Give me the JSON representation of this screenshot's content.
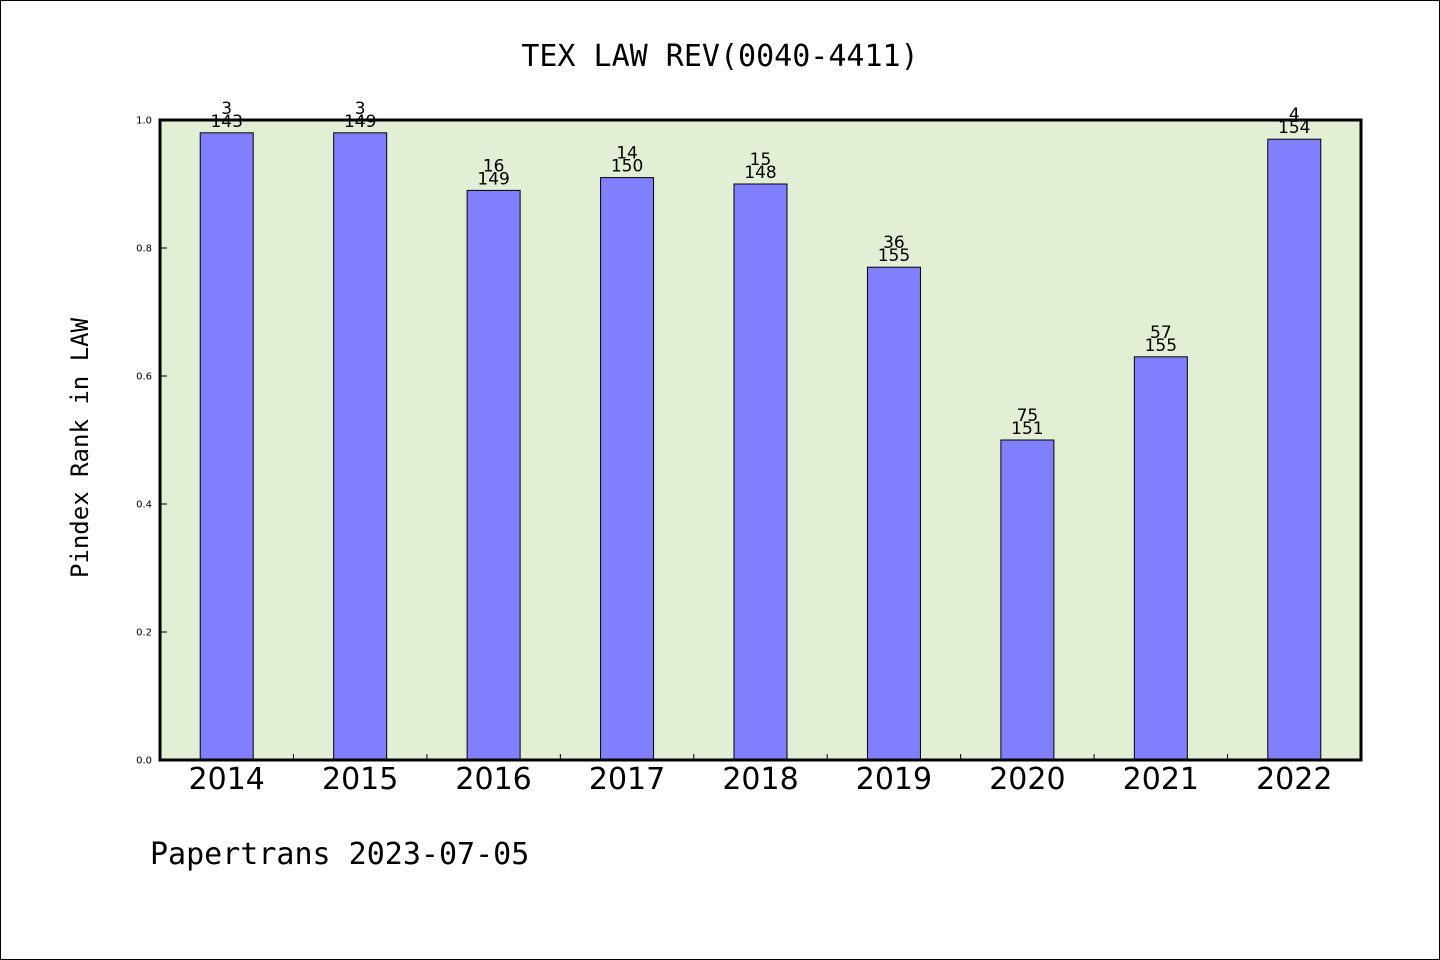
{
  "chart_data": {
    "type": "bar",
    "title": "TEX LAW REV(0040-4411)",
    "xlabel": "",
    "ylabel": "Pindex Rank in LAW",
    "ylim": [
      0.0,
      1.0
    ],
    "y_ticks": [
      "0.0",
      "0.2",
      "0.4",
      "0.6",
      "0.8",
      "1.0"
    ],
    "grid": false,
    "categories": [
      "2014",
      "2015",
      "2016",
      "2017",
      "2018",
      "2019",
      "2020",
      "2021",
      "2022"
    ],
    "values": [
      0.98,
      0.98,
      0.89,
      0.91,
      0.9,
      0.77,
      0.5,
      0.63,
      0.97
    ],
    "rank_labels": [
      "3",
      "3",
      "16",
      "14",
      "15",
      "36",
      "75",
      "57",
      "4"
    ],
    "total_labels": [
      "143",
      "149",
      "149",
      "150",
      "148",
      "155",
      "151",
      "155",
      "154"
    ],
    "plot_background": "#e2efd5",
    "bar_color": "#8080ff"
  },
  "footer": "Papertrans 2023-07-05"
}
